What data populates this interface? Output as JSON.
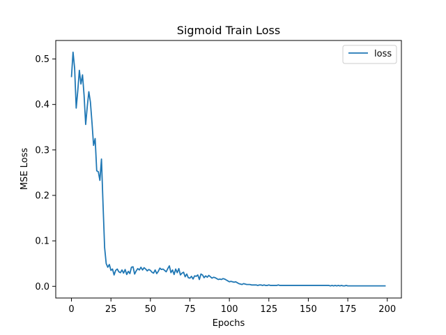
{
  "chart_data": {
    "type": "line",
    "title": "Sigmoid Train Loss",
    "xlabel": "Epochs",
    "ylabel": "MSE Loss",
    "xlim": [
      -9.95,
      208.95
    ],
    "ylim": [
      -0.0257,
      0.5407
    ],
    "xticks": [
      0,
      25,
      50,
      75,
      100,
      125,
      150,
      175,
      200
    ],
    "yticks": [
      0.0,
      0.1,
      0.2,
      0.3,
      0.4,
      0.5
    ],
    "ytick_labels": [
      "0.0",
      "0.1",
      "0.2",
      "0.3",
      "0.4",
      "0.5"
    ],
    "grid": false,
    "legend": {
      "position": "top-right",
      "entries": [
        "loss"
      ]
    },
    "series": [
      {
        "name": "loss",
        "color": "#1f77b4",
        "x": [
          0,
          1,
          2,
          3,
          4,
          5,
          6,
          7,
          8,
          9,
          10,
          11,
          12,
          13,
          14,
          15,
          16,
          17,
          18,
          19,
          20,
          21,
          22,
          23,
          24,
          25,
          26,
          27,
          28,
          29,
          30,
          31,
          32,
          33,
          34,
          35,
          36,
          37,
          38,
          39,
          40,
          41,
          42,
          43,
          44,
          45,
          46,
          47,
          48,
          49,
          50,
          51,
          52,
          53,
          54,
          55,
          56,
          57,
          58,
          59,
          60,
          61,
          62,
          63,
          64,
          65,
          66,
          67,
          68,
          69,
          70,
          71,
          72,
          73,
          74,
          75,
          76,
          77,
          78,
          79,
          80,
          81,
          82,
          83,
          84,
          85,
          86,
          87,
          88,
          89,
          90,
          91,
          92,
          93,
          94,
          95,
          96,
          97,
          98,
          99,
          100,
          101,
          102,
          103,
          104,
          105,
          106,
          107,
          108,
          109,
          110,
          111,
          112,
          113,
          114,
          115,
          116,
          117,
          118,
          119,
          120,
          121,
          122,
          123,
          124,
          125,
          126,
          127,
          128,
          129,
          130,
          131,
          132,
          133,
          134,
          135,
          136,
          137,
          138,
          139,
          140,
          141,
          142,
          143,
          144,
          145,
          146,
          147,
          148,
          149,
          150,
          151,
          152,
          153,
          154,
          155,
          156,
          157,
          158,
          159,
          160,
          161,
          162,
          163,
          164,
          165,
          166,
          167,
          168,
          169,
          170,
          171,
          172,
          173,
          174,
          175,
          176,
          177,
          178,
          179,
          180,
          181,
          182,
          183,
          184,
          185,
          186,
          187,
          188,
          189,
          190,
          191,
          192,
          193,
          194,
          195,
          196,
          197,
          198,
          199
        ],
        "y": [
          0.46,
          0.515,
          0.48,
          0.392,
          0.43,
          0.475,
          0.445,
          0.465,
          0.42,
          0.356,
          0.395,
          0.428,
          0.405,
          0.36,
          0.31,
          0.325,
          0.254,
          0.252,
          0.233,
          0.28,
          0.18,
          0.085,
          0.05,
          0.042,
          0.048,
          0.035,
          0.038,
          0.025,
          0.035,
          0.038,
          0.032,
          0.03,
          0.036,
          0.029,
          0.037,
          0.026,
          0.033,
          0.028,
          0.042,
          0.043,
          0.027,
          0.034,
          0.039,
          0.036,
          0.042,
          0.036,
          0.041,
          0.038,
          0.034,
          0.037,
          0.035,
          0.031,
          0.029,
          0.036,
          0.028,
          0.033,
          0.04,
          0.037,
          0.038,
          0.035,
          0.032,
          0.039,
          0.045,
          0.03,
          0.036,
          0.026,
          0.038,
          0.03,
          0.039,
          0.025,
          0.029,
          0.031,
          0.021,
          0.027,
          0.019,
          0.018,
          0.022,
          0.016,
          0.023,
          0.022,
          0.025,
          0.015,
          0.027,
          0.025,
          0.019,
          0.023,
          0.02,
          0.024,
          0.021,
          0.018,
          0.02,
          0.019,
          0.017,
          0.015,
          0.016,
          0.015,
          0.017,
          0.016,
          0.014,
          0.012,
          0.01,
          0.011,
          0.01,
          0.009,
          0.01,
          0.008,
          0.006,
          0.005,
          0.004,
          0.006,
          0.005,
          0.004,
          0.004,
          0.004,
          0.003,
          0.003,
          0.003,
          0.003,
          0.002,
          0.003,
          0.003,
          0.002,
          0.003,
          0.002,
          0.002,
          0.003,
          0.002,
          0.002,
          0.002,
          0.002,
          0.002,
          0.003,
          0.002,
          0.002,
          0.002,
          0.002,
          0.002,
          0.002,
          0.002,
          0.002,
          0.002,
          0.002,
          0.002,
          0.002,
          0.002,
          0.002,
          0.002,
          0.002,
          0.002,
          0.002,
          0.002,
          0.002,
          0.002,
          0.002,
          0.002,
          0.002,
          0.002,
          0.002,
          0.002,
          0.002,
          0.002,
          0.002,
          0.002,
          0.002,
          0.001,
          0.002,
          0.001,
          0.002,
          0.001,
          0.002,
          0.001,
          0.002,
          0.001,
          0.001,
          0.002,
          0.001,
          0.001,
          0.001,
          0.001,
          0.001,
          0.001,
          0.001,
          0.001,
          0.001,
          0.001,
          0.001,
          0.001,
          0.001,
          0.001,
          0.001,
          0.001,
          0.001,
          0.001,
          0.001,
          0.001,
          0.001,
          0.001,
          0.001,
          0.001,
          0.001
        ]
      }
    ]
  }
}
